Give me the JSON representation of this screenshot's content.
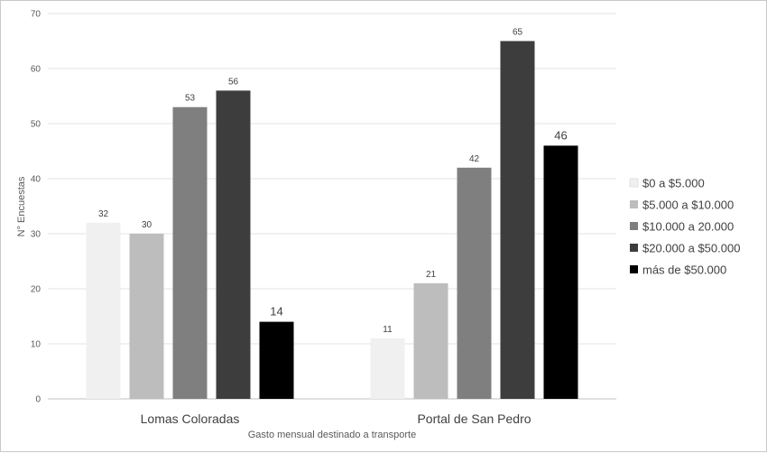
{
  "chart_data": {
    "type": "bar",
    "categories": [
      "Lomas Coloradas",
      "Portal de San Pedro"
    ],
    "series": [
      {
        "name": "$0 a $5.000",
        "values": [
          32,
          11
        ],
        "color": "#f0f0f0"
      },
      {
        "name": "$5.000 a $10.000",
        "values": [
          30,
          21
        ],
        "color": "#bdbdbd"
      },
      {
        "name": "$10.000 a 20.000",
        "values": [
          53,
          42
        ],
        "color": "#7f7f7f"
      },
      {
        "name": "$20.000 a $50.000",
        "values": [
          56,
          65
        ],
        "color": "#3d3d3d"
      },
      {
        "name": "más de $50.000",
        "values": [
          14,
          46
        ],
        "color": "#000000"
      }
    ],
    "xlabel": "Gasto mensual destinado a transporte",
    "ylabel": "N° Encuestas",
    "ylim": [
      0,
      70
    ],
    "yticks": [
      0,
      10,
      20,
      30,
      40,
      50,
      60,
      70
    ],
    "grid": true,
    "legend": "right"
  }
}
